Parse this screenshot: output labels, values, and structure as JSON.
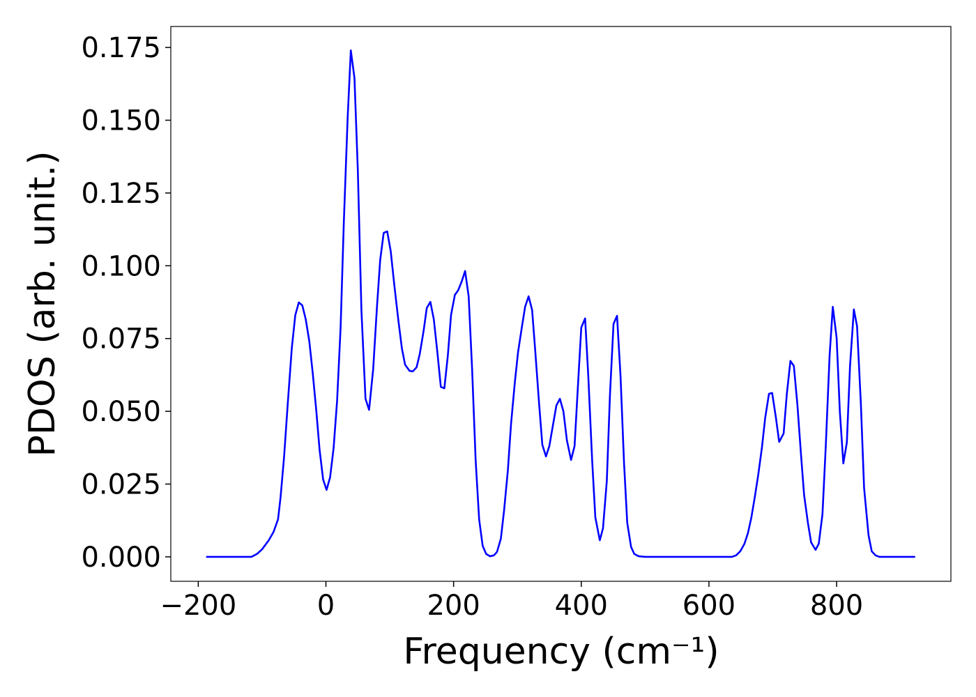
{
  "chart_data": {
    "type": "line",
    "x_label": "Frequency (cm⁻¹)",
    "y_label": "PDOS (arb. unit.)",
    "xlim": [
      -243,
      979
    ],
    "ylim": [
      -0.0084,
      0.1822
    ],
    "xticks": [
      {
        "value": -200,
        "label": "−200"
      },
      0,
      200,
      400,
      600,
      800
    ],
    "yticks": [
      {
        "value": 0,
        "label": "0.000"
      },
      {
        "value": 0.025,
        "label": "0.025"
      },
      {
        "value": 0.05,
        "label": "0.050"
      },
      {
        "value": 0.075,
        "label": "0.075"
      },
      {
        "value": 0.1,
        "label": "0.100"
      },
      {
        "value": 0.125,
        "label": "0.125"
      },
      {
        "value": 0.15,
        "label": "0.150"
      },
      {
        "value": 0.175,
        "label": "0.175"
      }
    ],
    "grid": false,
    "series": [
      {
        "color": "#0000ff",
        "x": [
          -187.6,
          -116.7,
          -108,
          -100,
          -89.5,
          -82,
          -75,
          -71,
          -65.5,
          -60,
          -53.5,
          -48,
          -42.5,
          -37,
          -31.6,
          -26,
          -20.7,
          -15,
          -10,
          -4.4,
          1,
          6.5,
          12,
          17.5,
          23,
          28,
          34,
          39,
          44.7,
          50,
          55.6,
          62,
          67.6,
          74,
          80,
          85,
          90.5,
          96,
          101.5,
          107,
          113.5,
          119,
          124,
          131,
          136,
          142,
          147,
          153,
          158,
          163.6,
          169,
          174.5,
          180,
          185.5,
          191,
          196,
          202,
          207,
          212.7,
          218,
          223.6,
          229,
          234.5,
          240,
          245.5,
          251,
          257,
          263,
          268,
          274,
          279,
          285,
          290,
          296,
          301,
          306.5,
          312,
          317.5,
          323,
          328,
          334,
          339,
          344.7,
          350,
          355.6,
          361,
          366.5,
          372,
          377.5,
          384,
          389.5,
          395,
          400,
          406,
          411,
          417,
          422,
          429,
          434,
          440,
          445,
          450.5,
          456,
          461.5,
          467,
          472,
          478,
          483,
          490,
          500,
          636,
          642.5,
          649,
          655.6,
          661,
          666.5,
          672,
          677.4,
          683,
          688,
          694,
          699,
          704.7,
          710,
          717,
          722,
          727.6,
          733,
          738.5,
          744,
          749,
          755,
          760,
          767,
          772,
          777.8,
          783,
          789,
          794,
          800,
          805,
          810.5,
          816,
          821,
          827,
          832,
          838,
          843,
          850,
          855,
          861,
          867,
          923
        ],
        "values": [
          0,
          0,
          0.001,
          0.0026,
          0.0057,
          0.0086,
          0.0129,
          0.0206,
          0.0345,
          0.052,
          0.0716,
          0.083,
          0.0874,
          0.0864,
          0.0816,
          0.074,
          0.0632,
          0.05,
          0.0369,
          0.0266,
          0.023,
          0.0273,
          0.0373,
          0.0536,
          0.0788,
          0.1147,
          0.1506,
          0.174,
          0.1645,
          0.1326,
          0.0847,
          0.0543,
          0.0505,
          0.0644,
          0.086,
          0.102,
          0.1113,
          0.1118,
          0.105,
          0.0936,
          0.0812,
          0.0716,
          0.066,
          0.0639,
          0.0637,
          0.0651,
          0.0697,
          0.0776,
          0.0855,
          0.0876,
          0.0816,
          0.0704,
          0.0584,
          0.0579,
          0.0692,
          0.0831,
          0.09,
          0.0915,
          0.0946,
          0.0982,
          0.0895,
          0.0644,
          0.0333,
          0.0129,
          0.0038,
          0.001,
          0.0002,
          0.0005,
          0.0017,
          0.0062,
          0.0158,
          0.0297,
          0.0457,
          0.0601,
          0.0704,
          0.0783,
          0.0859,
          0.0895,
          0.0848,
          0.0704,
          0.0524,
          0.0385,
          0.0345,
          0.0381,
          0.0452,
          0.052,
          0.0543,
          0.05,
          0.04,
          0.0333,
          0.0381,
          0.0596,
          0.0788,
          0.0819,
          0.062,
          0.0333,
          0.0136,
          0.0057,
          0.0098,
          0.0261,
          0.056,
          0.08,
          0.0828,
          0.062,
          0.0321,
          0.0117,
          0.0034,
          0.001,
          0.0002,
          0,
          0,
          0.0005,
          0.0019,
          0.0045,
          0.0081,
          0.0136,
          0.0208,
          0.0285,
          0.0376,
          0.0476,
          0.056,
          0.0563,
          0.0481,
          0.0395,
          0.0424,
          0.056,
          0.0673,
          0.0656,
          0.0524,
          0.0357,
          0.0213,
          0.0117,
          0.005,
          0.0024,
          0.0045,
          0.0146,
          0.0381,
          0.0692,
          0.0859,
          0.0752,
          0.05,
          0.0321,
          0.0393,
          0.0656,
          0.085,
          0.0792,
          0.0524,
          0.0237,
          0.0074,
          0.0019,
          0.0005,
          0,
          0
        ]
      }
    ]
  }
}
